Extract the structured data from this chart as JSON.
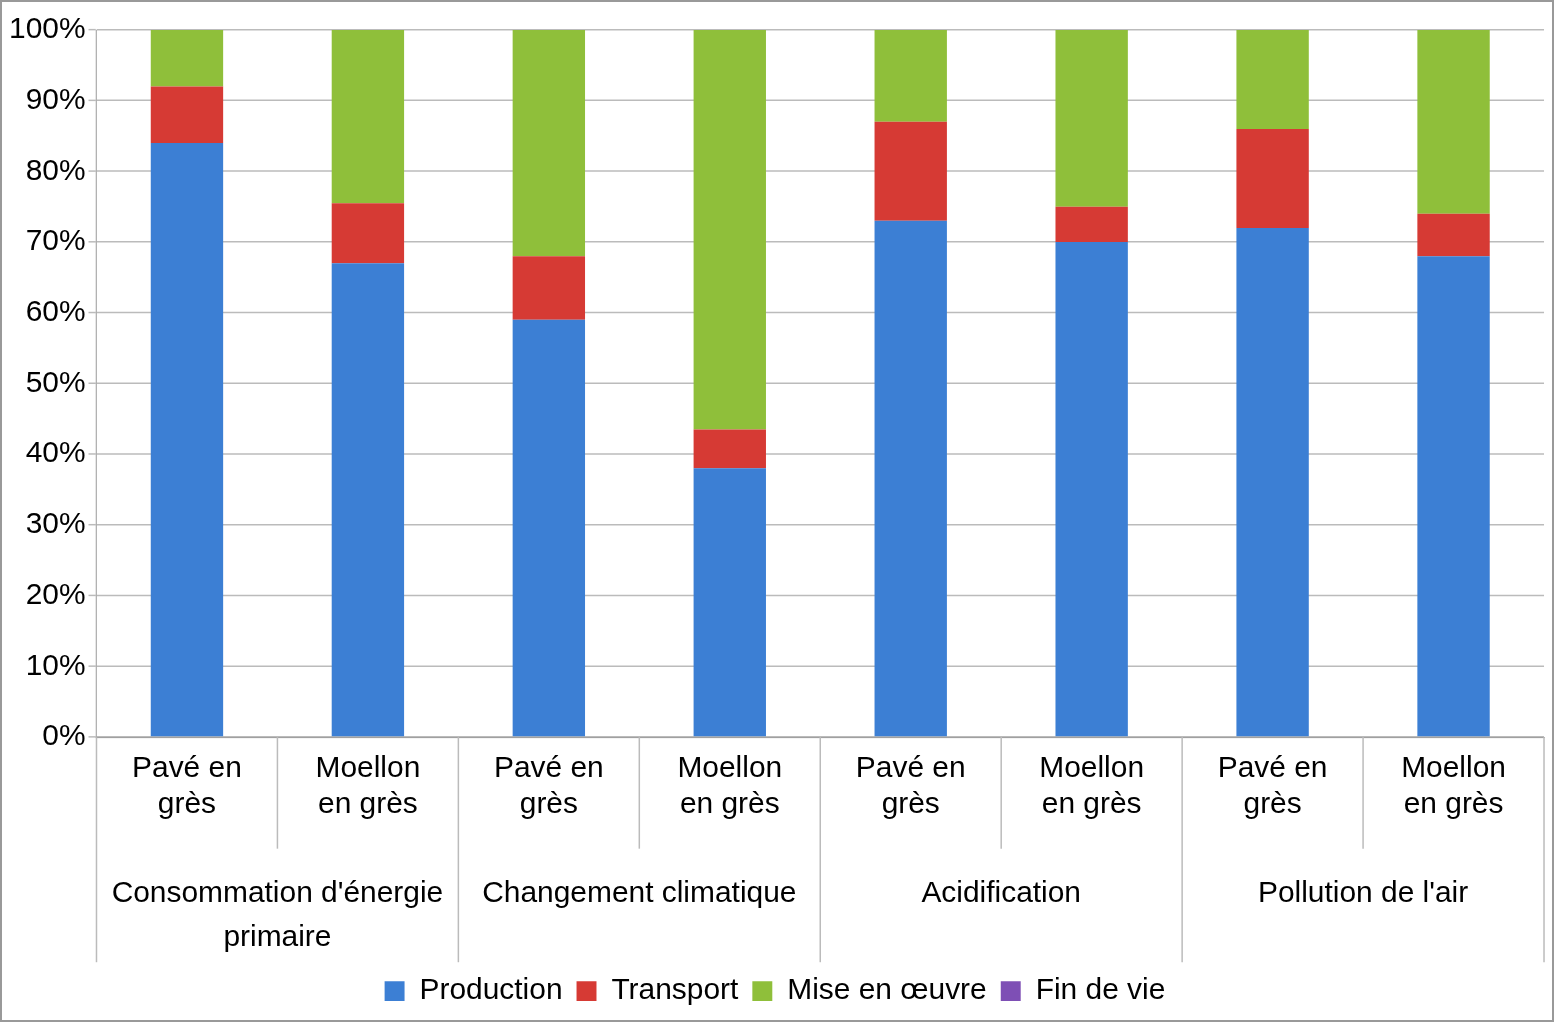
{
  "chart_data": {
    "type": "bar",
    "stacked": true,
    "categories": [
      "Pavé en grès",
      "Moellon en grès",
      "Pavé en grès",
      "Moellon en grès",
      "Pavé en grès",
      "Moellon en grès",
      "Pavé en grès",
      "Moellon en grès"
    ],
    "annotations": [
      "Consommation d'énergie primaire",
      "Changement climatique",
      "Acidification",
      "Pollution de l'air"
    ],
    "series": [
      {
        "name": "Production",
        "color": "#3c7fd4",
        "values": [
          84,
          67,
          59,
          38,
          73,
          70,
          72,
          68
        ]
      },
      {
        "name": "Transport",
        "color": "#d63a34",
        "values": [
          8,
          8.5,
          9,
          5.5,
          14,
          5,
          14,
          6
        ]
      },
      {
        "name": "Mise en œuvre",
        "color": "#8fbf3a",
        "values": [
          8,
          24.5,
          32,
          56.5,
          13,
          25,
          14,
          26
        ]
      },
      {
        "name": "Fin de vie",
        "color": "#7e4fb5",
        "values": [
          0,
          0,
          0,
          0,
          0,
          0,
          0,
          0
        ]
      }
    ],
    "ylim": [
      0,
      100
    ],
    "yticks": [
      {
        "value": 0,
        "label": "0%"
      },
      {
        "value": 10,
        "label": "10%"
      },
      {
        "value": 20,
        "label": "20%"
      },
      {
        "value": 30,
        "label": "30%"
      },
      {
        "value": 40,
        "label": "40%"
      },
      {
        "value": 50,
        "label": "50%"
      },
      {
        "value": 60,
        "label": "60%"
      },
      {
        "value": 70,
        "label": "70%"
      },
      {
        "value": 80,
        "label": "80%"
      },
      {
        "value": 90,
        "label": "90%"
      },
      {
        "value": 100,
        "label": "100%"
      }
    ],
    "grid": "y",
    "legend": "bottom"
  }
}
